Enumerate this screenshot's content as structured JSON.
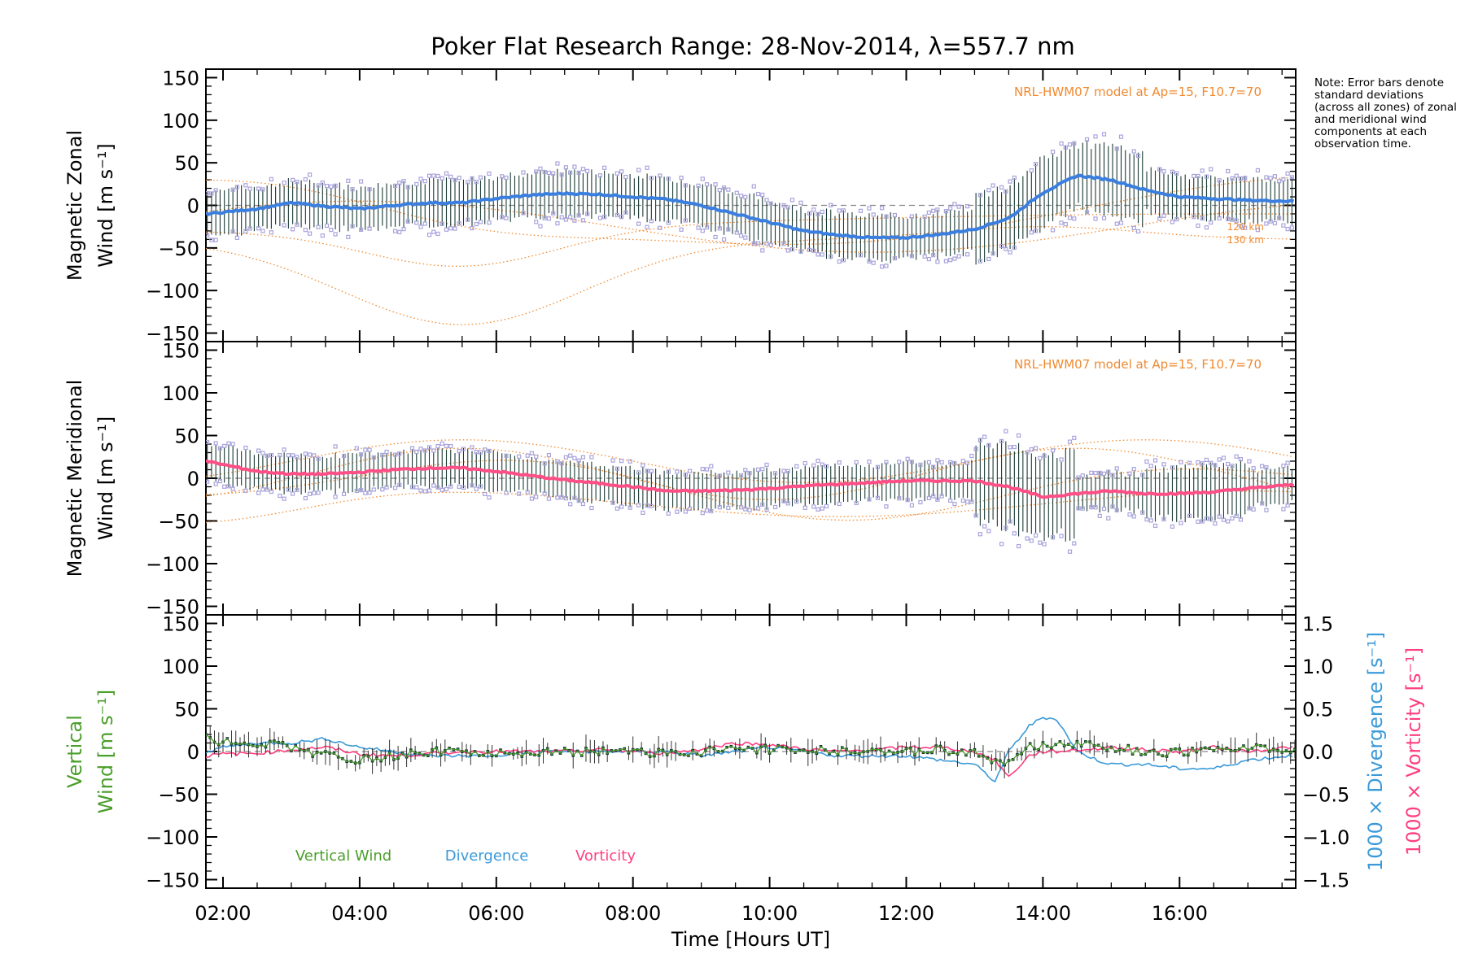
{
  "title": "Poker Flat Research Range: 28-Nov-2014, λ=557.7 nm",
  "note": "Note: Error bars denote standard deviations (across all zones) of zonal and meridional wind components at each observation time.",
  "colors": {
    "zonal": "#3a7fe0",
    "meridional": "#ff4f86",
    "vertical": "#4a9e2a",
    "divergence": "#3a9ad9",
    "vorticity": "#ff3f7f",
    "model": "#f08a30",
    "samples": "#a9a4dc",
    "errorbar": "#1a3a33"
  },
  "chart_data": [
    {
      "type": "line",
      "name": "zonal",
      "ylabel": "Magnetic Zonal Wind [m s⁻¹]",
      "ylabel_lines": [
        "Magnetic Zonal",
        "Wind [m s⁻¹]"
      ],
      "ylim": [
        -160,
        160
      ],
      "yticks": [
        150,
        100,
        50,
        0,
        -50,
        -100,
        -150
      ],
      "model_label": "NRL-HWM07 model at Ap=15, F10.7=70",
      "model_altitudes": [
        "120 km",
        "130 km"
      ],
      "x": [
        1.75,
        2.5,
        3.0,
        3.5,
        4.0,
        4.5,
        5.0,
        5.5,
        6.0,
        6.5,
        7.0,
        7.5,
        8.0,
        8.5,
        9.0,
        9.5,
        10.0,
        10.5,
        11.0,
        11.5,
        12.0,
        12.5,
        13.0,
        13.5,
        14.0,
        14.5,
        15.0,
        15.5,
        16.0,
        16.5,
        17.0,
        17.6
      ],
      "series": [
        {
          "values": [
            -10,
            -4,
            3,
            -1,
            -4,
            0,
            3,
            3,
            8,
            12,
            14,
            13,
            10,
            7,
            0,
            -10,
            -20,
            -30,
            -35,
            -38,
            -38,
            -34,
            -28,
            -15,
            15,
            35,
            30,
            18,
            10,
            8,
            6,
            5
          ]
        }
      ]
    },
    {
      "type": "line",
      "name": "meridional",
      "ylabel": "Magnetic Meridional Wind [m s⁻¹]",
      "ylabel_lines": [
        "Magnetic Meridional",
        "Wind [m s⁻¹]"
      ],
      "ylim": [
        -160,
        160
      ],
      "yticks": [
        150,
        100,
        50,
        0,
        -50,
        -100,
        -150
      ],
      "model_label": "NRL-HWM07 model at Ap=15, F10.7=70",
      "x": [
        1.75,
        2.5,
        3.0,
        3.5,
        4.0,
        4.5,
        5.0,
        5.5,
        6.0,
        6.5,
        7.0,
        7.5,
        8.0,
        8.5,
        9.0,
        9.5,
        10.0,
        10.5,
        11.0,
        11.5,
        12.0,
        12.5,
        13.0,
        13.5,
        14.0,
        14.5,
        15.0,
        15.5,
        16.0,
        16.5,
        17.0,
        17.6
      ],
      "series": [
        {
          "values": [
            20,
            8,
            5,
            5,
            7,
            10,
            12,
            12,
            8,
            3,
            -2,
            -6,
            -10,
            -15,
            -15,
            -14,
            -12,
            -9,
            -7,
            -5,
            -3,
            -3,
            -3,
            -10,
            -22,
            -18,
            -15,
            -18,
            -18,
            -16,
            -12,
            -8
          ]
        }
      ]
    },
    {
      "type": "line",
      "name": "vertical",
      "ylabel": "Vertical Wind [m s⁻¹]",
      "ylabel_lines": [
        "Vertical",
        "Wind [m s⁻¹]"
      ],
      "y2label": "1000 × Divergence [s⁻¹]",
      "y3label": "1000 × Vorticity [s⁻¹]",
      "ylim": [
        -160,
        160
      ],
      "yticks": [
        150,
        100,
        50,
        0,
        -50,
        -100,
        -150
      ],
      "y2lim": [
        -1.6,
        1.6
      ],
      "y2ticks": [
        "1.5",
        "1.0",
        "0.5",
        "0.0",
        "-0.5",
        "-1.0",
        "-1.5"
      ],
      "y2tick_values": [
        1.5,
        1.0,
        0.5,
        0.0,
        -0.5,
        -1.0,
        -1.5
      ],
      "legend": [
        "Vertical Wind",
        "Divergence",
        "Vorticity"
      ],
      "x": [
        1.75,
        2.0,
        2.5,
        3.0,
        3.5,
        4.0,
        4.5,
        5.0,
        5.5,
        6.0,
        6.5,
        7.0,
        7.5,
        8.0,
        8.5,
        9.0,
        9.5,
        10.0,
        10.5,
        11.0,
        11.5,
        12.0,
        12.5,
        13.0,
        13.3,
        13.5,
        13.8,
        14.0,
        14.2,
        14.5,
        14.8,
        15.0,
        15.5,
        16.0,
        16.5,
        17.0,
        17.6
      ],
      "series": [
        {
          "name": "Vertical Wind",
          "values": [
            15,
            12,
            10,
            5,
            -5,
            -10,
            -5,
            0,
            0,
            -2,
            -3,
            0,
            0,
            0,
            -2,
            0,
            2,
            3,
            2,
            0,
            -2,
            0,
            2,
            0,
            -15,
            -10,
            5,
            8,
            8,
            8,
            8,
            5,
            0,
            -2,
            2,
            5,
            0
          ]
        },
        {
          "name": "Divergence",
          "values": [
            0.0,
            0.05,
            0.1,
            0.1,
            0.15,
            0.05,
            0.0,
            -0.05,
            -0.05,
            -0.05,
            0.0,
            0.0,
            0.0,
            0.0,
            0.0,
            -0.05,
            0.0,
            0.05,
            0.0,
            -0.05,
            -0.05,
            -0.05,
            -0.1,
            -0.15,
            -0.35,
            0.0,
            0.3,
            0.4,
            0.38,
            0.0,
            -0.1,
            -0.15,
            -0.15,
            -0.2,
            -0.2,
            -0.1,
            -0.05
          ]
        },
        {
          "name": "Vorticity",
          "values": [
            -0.05,
            -0.03,
            -0.02,
            0.02,
            0.05,
            -0.03,
            -0.05,
            -0.03,
            0.0,
            0.0,
            0.0,
            0.0,
            0.02,
            0.0,
            -0.02,
            0.03,
            0.1,
            0.08,
            0.03,
            0.0,
            0.02,
            0.05,
            0.05,
            0.0,
            -0.1,
            -0.3,
            -0.05,
            0.0,
            0.0,
            0.02,
            0.03,
            0.05,
            0.02,
            0.0,
            0.05,
            0.0,
            0.05
          ]
        }
      ]
    }
  ],
  "xaxis": {
    "label": "Time [Hours UT]",
    "xlim": [
      1.75,
      17.7
    ],
    "ticks": [
      2,
      4,
      6,
      8,
      10,
      12,
      14,
      16
    ],
    "tick_labels": [
      "02:00",
      "04:00",
      "06:00",
      "08:00",
      "10:00",
      "12:00",
      "14:00",
      "16:00"
    ]
  }
}
